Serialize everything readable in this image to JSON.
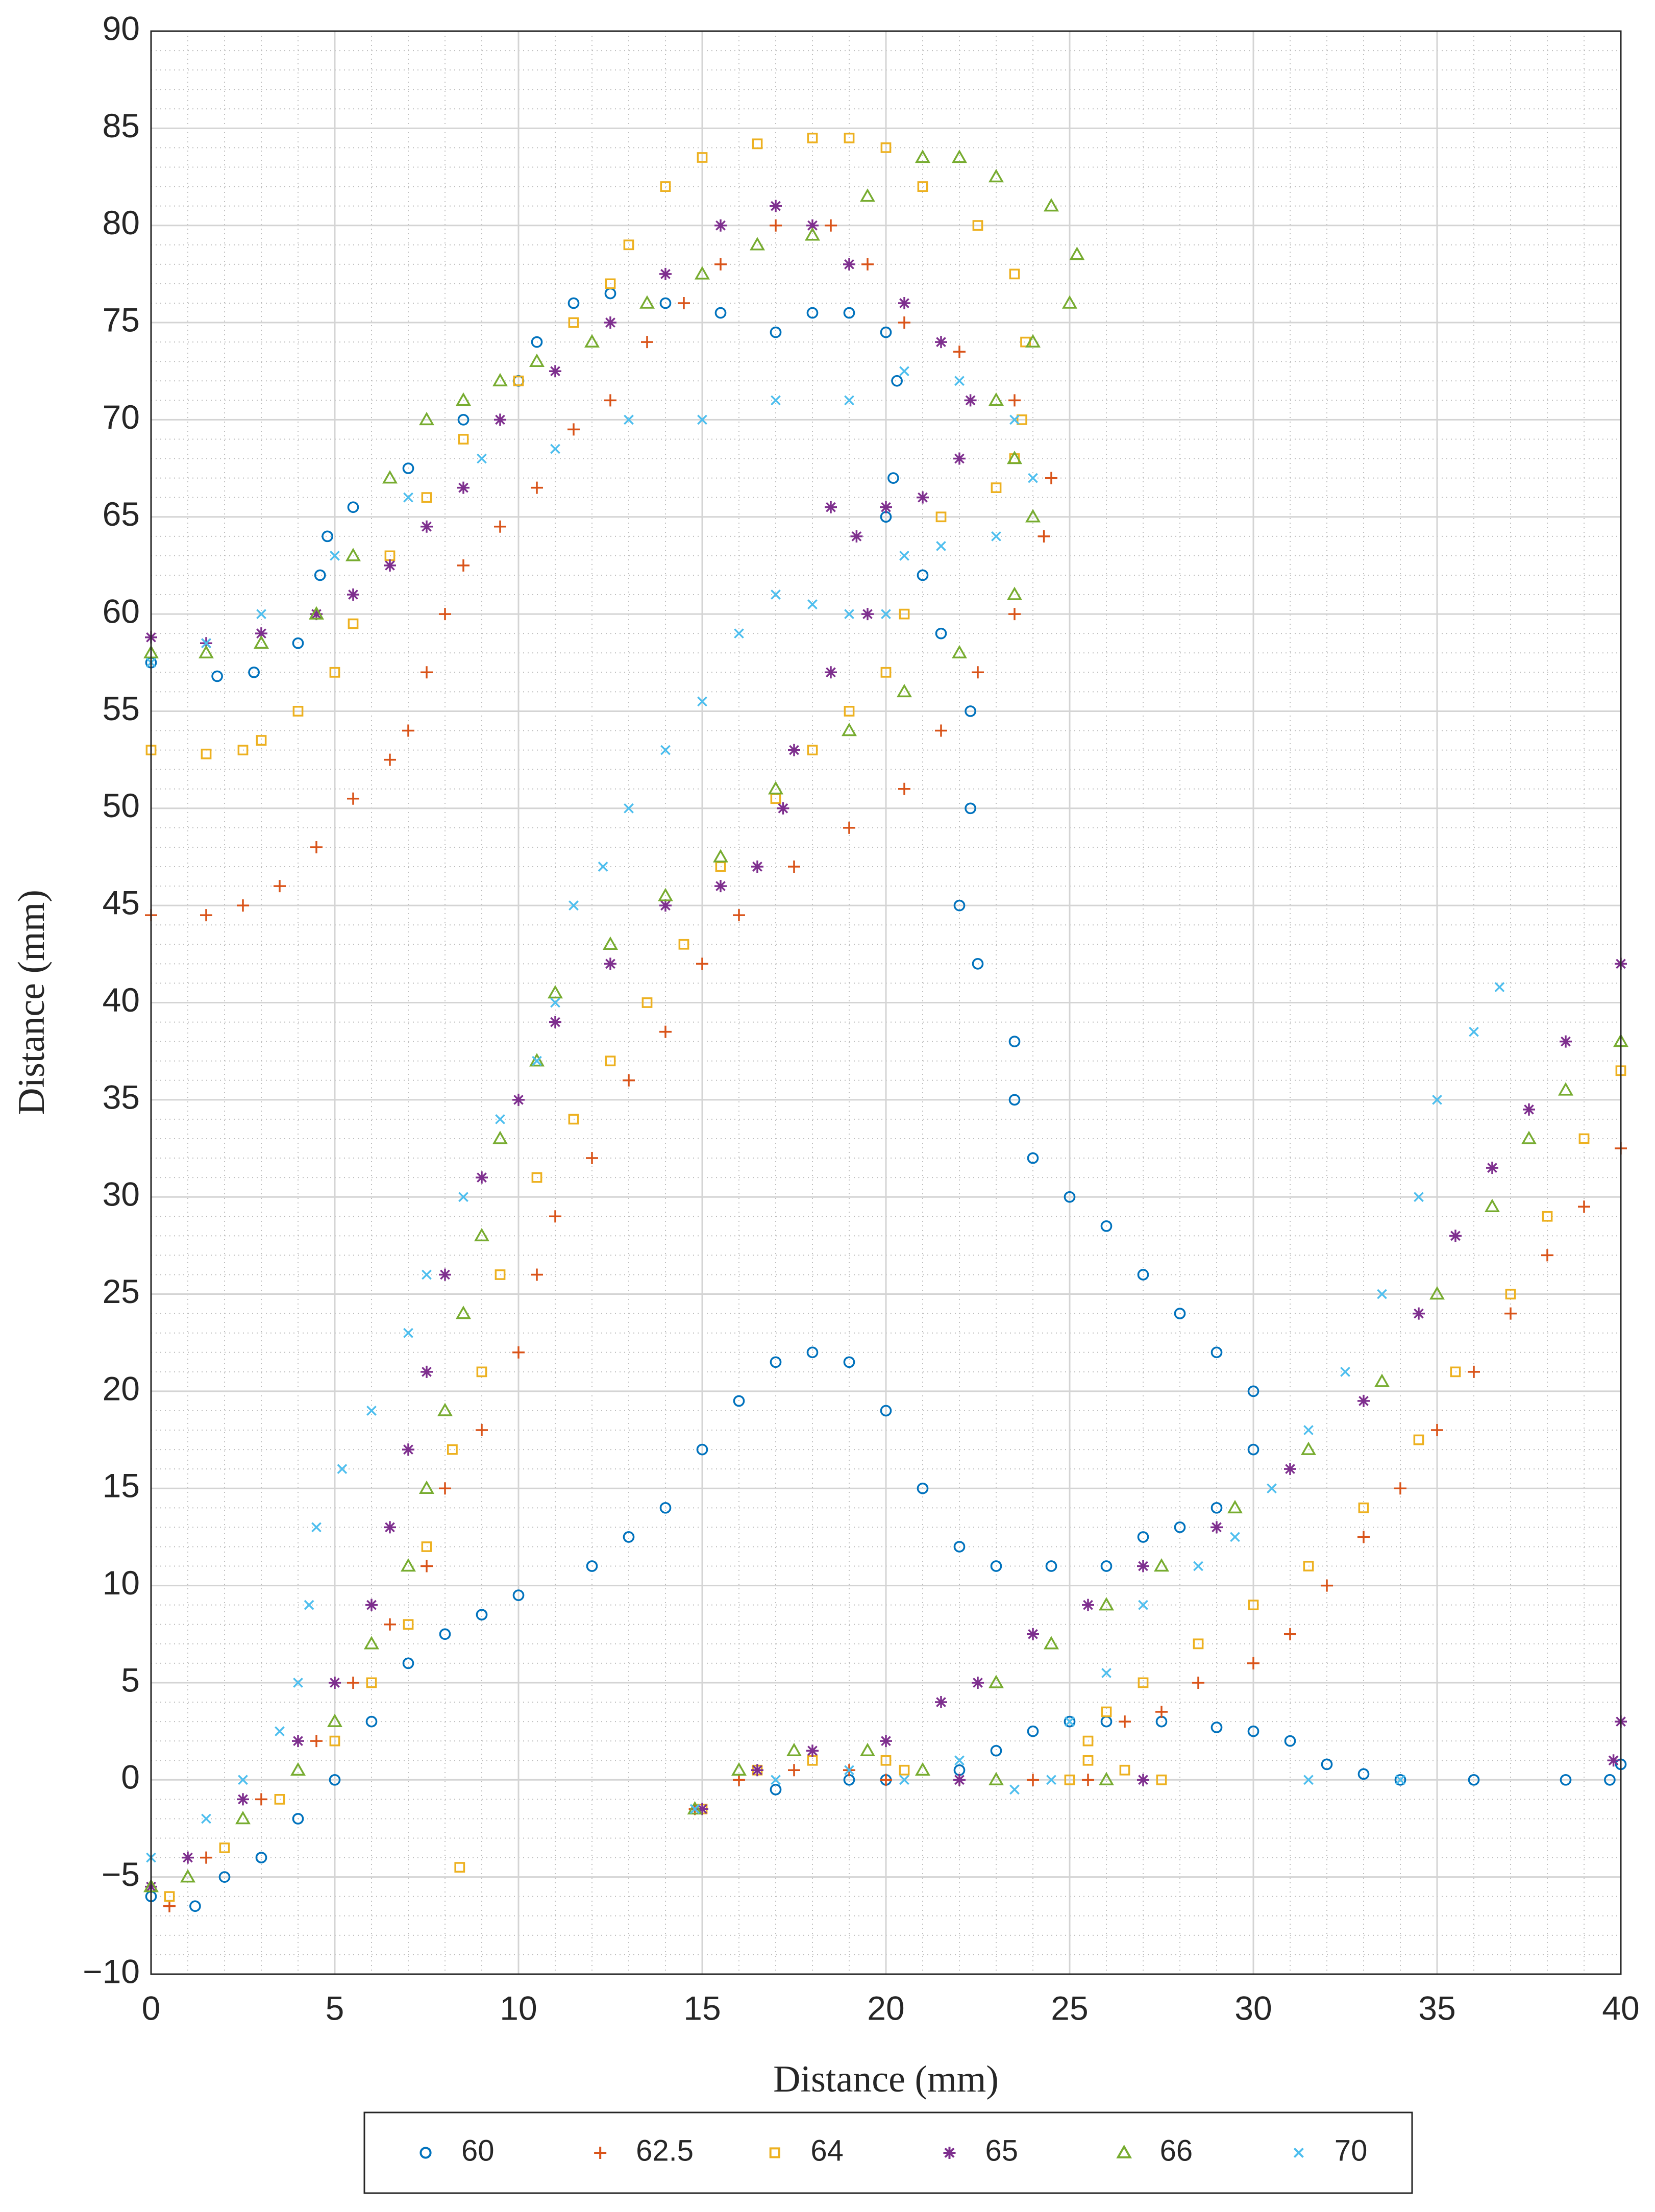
{
  "chart_data": {
    "type": "scatter",
    "xlabel": "Distance (mm)",
    "ylabel": "Distance (mm)",
    "xlim": [
      0,
      40
    ],
    "xticks": [
      0,
      5,
      10,
      15,
      20,
      25,
      30,
      35,
      40
    ],
    "ylim": [
      -10,
      90
    ],
    "yticks": [
      {
        "value": -10,
        "label": "−10"
      },
      {
        "value": -5,
        "label": "−5"
      },
      0,
      5,
      10,
      15,
      20,
      25,
      30,
      35,
      40,
      45,
      50,
      55,
      60,
      65,
      70,
      75,
      80,
      85,
      90
    ],
    "grid": true,
    "minor_grid": true,
    "legend": "south-outside",
    "series": [
      {
        "name": "60",
        "color": "#0072BD",
        "marker": "o",
        "x": [
          0,
          1.2,
          2,
          3,
          4,
          5,
          6,
          7,
          8,
          9,
          10,
          12,
          13,
          14,
          15,
          16,
          17,
          18,
          19,
          20,
          21,
          22,
          23,
          24.5,
          0,
          1.8,
          2.8,
          4,
          4.6,
          4.8,
          5.5,
          7,
          8.5,
          10,
          10.5,
          11.5,
          12.5,
          14,
          15.5,
          17,
          18,
          19,
          20,
          20.3,
          20.2,
          20,
          21,
          21.5,
          22.3,
          22.3,
          22,
          22.5,
          23.5,
          23.5,
          24,
          25,
          26,
          27,
          28,
          29,
          30,
          30,
          29,
          28,
          27,
          26,
          17,
          19,
          20,
          22,
          23,
          24,
          25,
          26,
          27.5,
          29,
          30,
          31,
          32,
          33,
          34,
          36,
          38.5,
          39.7,
          40
        ],
        "values": [
          -6,
          -6.5,
          -5,
          -4,
          -2,
          0,
          3,
          6,
          7.5,
          8.5,
          9.5,
          11,
          12.5,
          14,
          17,
          19.5,
          21.5,
          22,
          21.5,
          19,
          15,
          12,
          11,
          11,
          57.5,
          56.8,
          57,
          58.5,
          62,
          64,
          65.5,
          67.5,
          70,
          72,
          74,
          76,
          76.5,
          76,
          75.5,
          74.5,
          75.5,
          75.5,
          74.5,
          72,
          67,
          65,
          62,
          59,
          55,
          50,
          45,
          42,
          38,
          35,
          32,
          30,
          28.5,
          26,
          24,
          22,
          20,
          17,
          14,
          13,
          12.5,
          11,
          -0.5,
          0,
          0,
          0.5,
          1.5,
          2.5,
          3,
          3,
          3,
          2.7,
          2.5,
          2,
          0.8,
          0.3,
          0,
          0,
          0,
          0,
          0.8
        ]
      },
      {
        "name": "62.5",
        "color": "#D95319",
        "marker": "+",
        "x": [
          0,
          1.5,
          2.5,
          3.5,
          4.5,
          5.5,
          6.5,
          7,
          7.5,
          8,
          8.5,
          9.5,
          10.5,
          11.5,
          12.5,
          13.5,
          14.5,
          15.5,
          17,
          18.5,
          19.5,
          20.5,
          22,
          23.5,
          24.5,
          24.3,
          23.5,
          22.5,
          21.5,
          20.5,
          19,
          17.5,
          16,
          15,
          14,
          13,
          12,
          11,
          10.5,
          10,
          9,
          8,
          7.5,
          6.5,
          5.5,
          4.5,
          3,
          1.5,
          0.5,
          14.8,
          16,
          17.5,
          19,
          20,
          22,
          24,
          25.5,
          26.5,
          27.5,
          28.5,
          30,
          31,
          32,
          33,
          34,
          35,
          36,
          37,
          38,
          39,
          40
        ],
        "values": [
          44.5,
          44.5,
          45,
          46,
          48,
          50.5,
          52.5,
          54,
          57,
          60,
          62.5,
          64.5,
          66.5,
          69.5,
          71,
          74,
          76,
          78,
          80,
          80,
          78,
          75,
          73.5,
          71,
          67,
          64,
          60,
          57,
          54,
          51,
          49,
          47,
          44.5,
          42,
          38.5,
          36,
          32,
          29,
          26,
          22,
          18,
          15,
          11,
          8,
          5,
          2,
          -1,
          -4,
          -6.5,
          -1.5,
          0,
          0.5,
          0.5,
          0,
          0,
          0,
          0,
          3,
          3.5,
          5,
          6,
          7.5,
          10,
          12.5,
          15,
          18,
          21,
          24,
          27,
          29.5,
          32.5
        ]
      },
      {
        "name": "64",
        "color": "#EDB120",
        "marker": "s",
        "x": [
          0,
          1.5,
          2.5,
          3,
          4,
          5,
          5.5,
          6.5,
          7.5,
          8.5,
          10,
          11.5,
          12.5,
          13,
          14,
          15,
          16.5,
          18,
          19,
          20,
          21,
          22.5,
          23.5,
          23.8,
          23.7,
          23.5,
          23,
          21.5,
          20.5,
          20,
          19,
          18,
          17,
          15.5,
          14.5,
          13.5,
          12.5,
          11.5,
          10.5,
          9.5,
          9,
          8.2,
          7.5,
          7,
          6,
          5,
          3.5,
          2,
          0.5,
          8.4,
          15,
          16.5,
          18,
          20,
          20.5,
          25,
          25.5,
          26.5,
          27.5,
          25.5,
          26,
          27,
          28.5,
          30,
          31.5,
          33,
          34.5,
          35.5,
          37,
          38,
          39,
          40
        ],
        "values": [
          53,
          52.8,
          53,
          53.5,
          55,
          57,
          59.5,
          63,
          66,
          69,
          72,
          75,
          77,
          79,
          82,
          83.5,
          84.2,
          84.5,
          84.5,
          84,
          82,
          80,
          77.5,
          74,
          70,
          68,
          66.5,
          65,
          60,
          57,
          55,
          53,
          50.5,
          47,
          43,
          40,
          37,
          34,
          31,
          26,
          21,
          17,
          12,
          8,
          5,
          2,
          -1,
          -3.5,
          -6,
          -4.5,
          -1.5,
          0.5,
          1,
          1,
          0.5,
          0,
          1,
          0.5,
          0,
          2,
          3.5,
          5,
          7,
          9,
          11,
          14,
          17.5,
          21,
          25,
          29,
          33,
          36.5
        ]
      },
      {
        "name": "65",
        "color": "#7E2F8E",
        "marker": "*",
        "x": [
          0,
          1.5,
          3,
          4.5,
          5.5,
          6.5,
          7.5,
          8.5,
          9.5,
          11,
          12.5,
          14,
          15.5,
          17,
          18,
          19,
          20.5,
          21.5,
          22.3,
          22,
          21,
          20,
          18.5,
          19.2,
          19.5,
          18.5,
          17.5,
          17.2,
          16.5,
          15.5,
          14,
          12.5,
          11,
          10,
          9,
          8,
          7.5,
          7,
          6.5,
          6,
          5,
          4,
          2.5,
          1,
          0,
          15,
          16.5,
          18,
          20,
          21.5,
          22,
          27,
          22.5,
          24,
          25.5,
          27,
          29,
          31,
          33,
          34.5,
          35.5,
          36.5,
          37.5,
          38.5,
          40,
          39.8,
          40
        ],
        "values": [
          58.8,
          58.5,
          59,
          60,
          61,
          62.5,
          64.5,
          66.5,
          70,
          72.5,
          75,
          77.5,
          80,
          81,
          80,
          78,
          76,
          74,
          71,
          68,
          66,
          65.5,
          65.5,
          64,
          60,
          57,
          53,
          50,
          47,
          46,
          45,
          42,
          39,
          35,
          31,
          26,
          21,
          17,
          13,
          9,
          5,
          2,
          -1,
          -4,
          -5.5,
          -1.5,
          0.5,
          1.5,
          2,
          4,
          0,
          0,
          5,
          7.5,
          9,
          11,
          13,
          16,
          19.5,
          24,
          28,
          31.5,
          34.5,
          38,
          42,
          1,
          3
        ]
      },
      {
        "name": "66",
        "color": "#77AC30",
        "marker": "^",
        "x": [
          0,
          1.5,
          3,
          4.5,
          5.5,
          6.5,
          7.5,
          8.5,
          9.5,
          10.5,
          12,
          13.5,
          15,
          16.5,
          18,
          19.5,
          21,
          22,
          23,
          24.5,
          25.2,
          25,
          24,
          23,
          23.5,
          24,
          23.5,
          22,
          20.5,
          19,
          17,
          15.5,
          14,
          12.5,
          11,
          10.5,
          9.5,
          9,
          8.5,
          8,
          7.5,
          7,
          6,
          5,
          4,
          2.5,
          1,
          0,
          14.8,
          16,
          17.5,
          19.5,
          21,
          23,
          26,
          23,
          24.5,
          26,
          27.5,
          29.5,
          31.5,
          33.5,
          35,
          36.5,
          37.5,
          38.5,
          40
        ],
        "values": [
          58,
          58,
          58.5,
          60,
          63,
          67,
          70,
          71,
          72,
          73,
          74,
          76,
          77.5,
          79,
          79.5,
          81.5,
          83.5,
          83.5,
          82.5,
          81,
          78.5,
          76,
          74,
          71,
          68,
          65,
          61,
          58,
          56,
          54,
          51,
          47.5,
          45.5,
          43,
          40.5,
          37,
          33,
          28,
          24,
          19,
          15,
          11,
          7,
          3,
          0.5,
          -2,
          -5,
          -5.5,
          -1.5,
          0.5,
          1.5,
          1.5,
          0.5,
          0,
          0,
          5,
          7,
          9,
          11,
          14,
          17,
          20.5,
          25,
          29.5,
          33,
          35.5,
          38
        ]
      },
      {
        "name": "70",
        "color": "#4DBEEE",
        "marker": "x",
        "x": [
          0,
          1.5,
          2.5,
          3.5,
          4,
          4.3,
          4.5,
          5.2,
          6,
          7,
          7.5,
          8.5,
          9.5,
          10.5,
          11,
          11.5,
          12.3,
          13,
          14,
          15,
          16,
          17,
          18,
          19,
          20,
          20.5,
          21.5,
          23,
          24,
          23.5,
          22,
          20.5,
          19,
          17,
          15,
          13,
          11,
          9,
          7,
          5,
          3,
          1.5,
          0,
          14.8,
          17,
          19,
          20.5,
          22,
          23.5,
          24.5,
          25,
          26,
          27,
          28.5,
          29.5,
          30.5,
          31.5,
          32.5,
          33.5,
          34.5,
          35,
          36,
          36.7,
          31.5,
          34
        ],
        "values": [
          -4,
          -2,
          0,
          2.5,
          5,
          9,
          13,
          16,
          19,
          23,
          26,
          30,
          34,
          37,
          40,
          45,
          47,
          50,
          53,
          55.5,
          59,
          61,
          60.5,
          60,
          60,
          63,
          63.5,
          64,
          67,
          70,
          72,
          72.5,
          71,
          71,
          70,
          70,
          68.5,
          68,
          66,
          63,
          60,
          58.5,
          57.5,
          -1.5,
          0,
          0.5,
          0,
          1,
          -0.5,
          0,
          3,
          5.5,
          9,
          11,
          12.5,
          15,
          18,
          21,
          25,
          30,
          35,
          38.5,
          40.8,
          0,
          0
        ]
      }
    ]
  }
}
